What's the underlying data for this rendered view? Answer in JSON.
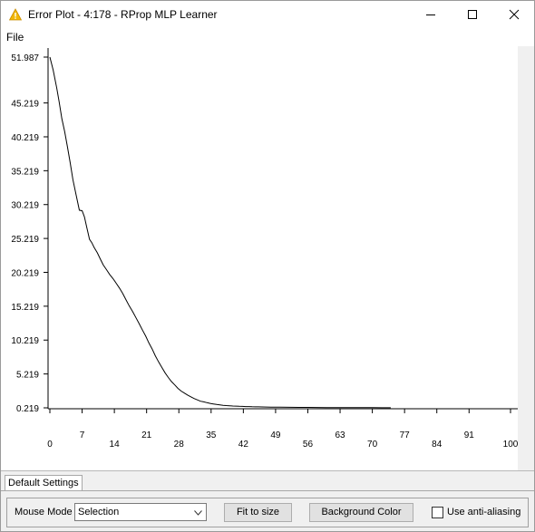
{
  "window": {
    "title": "Error Plot - 4:178 - RProp MLP Learner",
    "app_icon": "warning-triangle-icon",
    "controls": [
      "minimize-icon",
      "maximize-icon",
      "close-icon"
    ]
  },
  "menu": {
    "file": "File"
  },
  "tabs": [
    {
      "label": "Default Settings"
    }
  ],
  "controls": {
    "mouse_mode_label": "Mouse Mode",
    "mouse_mode_value": "Selection",
    "fit_to_size": "Fit to size",
    "background_color": "Background Color",
    "anti_aliasing_label": "Use anti-aliasing",
    "anti_aliasing_checked": false
  },
  "colors": {
    "accent_icon": "#f2b705",
    "line": "#000000",
    "background": "#ffffff"
  },
  "chart_data": {
    "type": "line",
    "title": "",
    "xlabel": "",
    "ylabel": "",
    "grid": false,
    "xlim": [
      0,
      100
    ],
    "ylim": [
      0.219,
      51.987
    ],
    "x_ticks": [
      "0",
      "7",
      "14",
      "21",
      "28",
      "35",
      "42",
      "49",
      "56",
      "63",
      "70",
      "77",
      "84",
      "91",
      "100"
    ],
    "y_ticks": [
      "51.987",
      "45.219",
      "40.219",
      "35.219",
      "30.219",
      "25.219",
      "20.219",
      "15.219",
      "10.219",
      "5.219",
      "0.219"
    ],
    "series": [
      {
        "x": [
          0,
          0.7,
          1.5,
          2,
          2.6,
          3.2,
          3.8,
          4.4,
          5,
          5.7,
          6.4,
          7,
          7.5,
          8,
          8.6,
          9.1,
          9.6,
          10.3,
          11,
          11.6,
          12.3,
          13,
          13.7,
          14.4,
          15.1,
          15.8,
          16.5,
          17.2,
          18,
          18.7,
          19.4,
          20.1,
          20.8,
          21.5,
          22.2,
          22.9,
          23.6,
          24.3,
          25,
          25.7,
          26.4,
          27.1,
          27.8,
          28.5,
          29.2,
          29.9,
          30.6,
          31.3,
          32,
          32.7,
          33.4,
          34.1,
          34.8,
          35.5,
          36.2,
          36.9,
          37.6,
          38.3,
          39,
          39.7,
          40.4,
          41.1,
          41.8,
          42.5,
          43.2,
          43.9,
          44.6,
          45.3,
          46,
          47,
          48,
          49,
          50,
          52,
          54,
          56,
          58,
          60,
          62,
          64,
          66,
          68,
          70,
          72,
          74
        ],
        "y": [
          51.987,
          50.1,
          47.4,
          45.4,
          42.9,
          41,
          38.8,
          36.4,
          33.9,
          31.6,
          29.4,
          29.3,
          28.4,
          26.9,
          25.1,
          24.6,
          23.9,
          23.1,
          22.1,
          21.3,
          20.6,
          19.9,
          19.3,
          18.6,
          17.9,
          17.1,
          16.2,
          15.3,
          14.4,
          13.5,
          12.6,
          11.7,
          10.8,
          9.8,
          8.9,
          7.9,
          7.0,
          6.2,
          5.4,
          4.7,
          4.1,
          3.6,
          3.1,
          2.7,
          2.4,
          2.1,
          1.85,
          1.6,
          1.4,
          1.2,
          1.1,
          0.98,
          0.88,
          0.8,
          0.72,
          0.66,
          0.6,
          0.56,
          0.52,
          0.49,
          0.47,
          0.45,
          0.43,
          0.41,
          0.4,
          0.38,
          0.37,
          0.36,
          0.35,
          0.34,
          0.33,
          0.32,
          0.31,
          0.3,
          0.29,
          0.28,
          0.27,
          0.265,
          0.26,
          0.255,
          0.25,
          0.245,
          0.24,
          0.235,
          0.23
        ]
      }
    ]
  }
}
